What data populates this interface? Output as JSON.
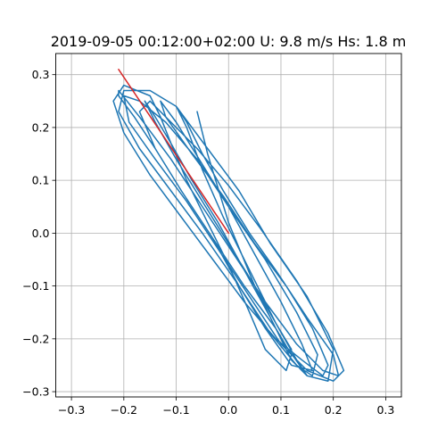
{
  "chart_data": {
    "type": "line",
    "title": "2019-09-05 00:12:00+02:00 U: 9.8 m/s Hs: 1.8 m",
    "xlabel": "",
    "ylabel": "",
    "xlim": [
      -0.33,
      0.33
    ],
    "ylim": [
      -0.31,
      0.34
    ],
    "grid": true,
    "x_ticks": [
      -0.3,
      -0.2,
      -0.1,
      0.0,
      0.1,
      0.2,
      0.3
    ],
    "x_tick_labels": [
      "−0.3",
      "−0.2",
      "−0.1",
      "0.0",
      "0.1",
      "0.2",
      "0.3"
    ],
    "y_ticks": [
      -0.3,
      -0.2,
      -0.1,
      0.0,
      0.1,
      0.2,
      0.3
    ],
    "y_tick_labels": [
      "−0.3",
      "−0.2",
      "−0.1",
      "0.0",
      "0.1",
      "0.2",
      "0.3"
    ],
    "series": [
      {
        "color": "#1f77b4",
        "points": [
          [
            -0.06,
            0.23
          ],
          [
            -0.04,
            0.15
          ],
          [
            0.0,
            0.02
          ],
          [
            0.05,
            -0.1
          ],
          [
            0.1,
            -0.2
          ],
          [
            0.15,
            -0.27
          ],
          [
            0.19,
            -0.28
          ],
          [
            0.2,
            -0.22
          ],
          [
            0.15,
            -0.12
          ],
          [
            0.08,
            -0.02
          ],
          [
            0.02,
            0.08
          ],
          [
            -0.04,
            0.16
          ],
          [
            -0.1,
            0.24
          ],
          [
            -0.15,
            0.27
          ],
          [
            -0.2,
            0.27
          ],
          [
            -0.21,
            0.23
          ],
          [
            -0.17,
            0.16
          ],
          [
            -0.11,
            0.08
          ],
          [
            -0.05,
            0.0
          ],
          [
            0.02,
            -0.1
          ],
          [
            0.08,
            -0.19
          ],
          [
            0.13,
            -0.25
          ],
          [
            0.16,
            -0.27
          ],
          [
            0.17,
            -0.23
          ],
          [
            0.13,
            -0.15
          ],
          [
            0.07,
            -0.05
          ],
          [
            0.0,
            0.05
          ],
          [
            -0.06,
            0.14
          ],
          [
            -0.12,
            0.21
          ],
          [
            -0.17,
            0.25
          ],
          [
            -0.2,
            0.26
          ],
          [
            -0.19,
            0.21
          ],
          [
            -0.14,
            0.14
          ],
          [
            -0.08,
            0.06
          ],
          [
            -0.02,
            -0.03
          ],
          [
            0.04,
            -0.12
          ],
          [
            0.1,
            -0.21
          ],
          [
            0.15,
            -0.26
          ],
          [
            0.2,
            -0.28
          ],
          [
            0.22,
            -0.26
          ],
          [
            0.19,
            -0.19
          ],
          [
            0.13,
            -0.09
          ],
          [
            0.06,
            0.01
          ],
          [
            0.0,
            0.09
          ],
          [
            -0.06,
            0.16
          ],
          [
            -0.11,
            0.21
          ],
          [
            -0.15,
            0.25
          ],
          [
            -0.17,
            0.23
          ],
          [
            -0.14,
            0.16
          ],
          [
            -0.09,
            0.08
          ],
          [
            -0.03,
            -0.01
          ],
          [
            0.03,
            -0.1
          ],
          [
            0.09,
            -0.18
          ],
          [
            0.12,
            -0.23
          ],
          [
            0.11,
            -0.26
          ],
          [
            0.07,
            -0.22
          ],
          [
            0.04,
            -0.15
          ],
          [
            0.0,
            -0.06
          ],
          [
            -0.04,
            0.02
          ],
          [
            -0.08,
            0.1
          ],
          [
            -0.11,
            0.17
          ],
          [
            -0.13,
            0.22
          ],
          [
            -0.15,
            0.26
          ],
          [
            -0.2,
            0.28
          ],
          [
            -0.22,
            0.25
          ],
          [
            -0.2,
            0.19
          ],
          [
            -0.15,
            0.11
          ],
          [
            -0.09,
            0.03
          ],
          [
            -0.03,
            -0.05
          ],
          [
            0.03,
            -0.13
          ],
          [
            0.09,
            -0.2
          ],
          [
            0.14,
            -0.24
          ],
          [
            0.18,
            -0.27
          ],
          [
            0.19,
            -0.25
          ],
          [
            0.16,
            -0.18
          ],
          [
            0.11,
            -0.1
          ],
          [
            0.05,
            -0.02
          ],
          [
            -0.01,
            0.07
          ],
          [
            -0.07,
            0.15
          ],
          [
            -0.12,
            0.22
          ],
          [
            -0.13,
            0.25
          ],
          [
            -0.1,
            0.21
          ],
          [
            -0.05,
            0.13
          ],
          [
            0.0,
            0.05
          ],
          [
            0.05,
            -0.04
          ],
          [
            0.1,
            -0.13
          ],
          [
            0.14,
            -0.21
          ],
          [
            0.16,
            -0.26
          ],
          [
            0.12,
            -0.25
          ],
          [
            0.07,
            -0.18
          ],
          [
            0.02,
            -0.1
          ],
          [
            -0.03,
            -0.01
          ],
          [
            -0.09,
            0.08
          ],
          [
            -0.14,
            0.16
          ],
          [
            -0.18,
            0.22
          ],
          [
            -0.21,
            0.26
          ],
          [
            -0.21,
            0.27
          ],
          [
            -0.17,
            0.22
          ],
          [
            -0.11,
            0.14
          ],
          [
            -0.05,
            0.05
          ],
          [
            0.01,
            -0.04
          ],
          [
            0.07,
            -0.13
          ],
          [
            0.13,
            -0.21
          ],
          [
            0.18,
            -0.26
          ],
          [
            0.21,
            -0.27
          ],
          [
            0.2,
            -0.23
          ],
          [
            0.15,
            -0.16
          ],
          [
            0.09,
            -0.07
          ],
          [
            0.04,
            0.0
          ],
          [
            -0.01,
            0.08
          ],
          [
            -0.05,
            0.15
          ],
          [
            -0.08,
            0.21
          ],
          [
            -0.1,
            0.24
          ],
          [
            -0.08,
            0.2
          ],
          [
            -0.05,
            0.12
          ],
          [
            -0.01,
            0.03
          ],
          [
            0.04,
            -0.07
          ],
          [
            0.09,
            -0.17
          ],
          [
            0.13,
            -0.24
          ],
          [
            0.15,
            -0.27
          ],
          [
            0.12,
            -0.24
          ],
          [
            0.08,
            -0.16
          ],
          [
            0.03,
            -0.07
          ],
          [
            -0.02,
            0.02
          ],
          [
            -0.07,
            0.1
          ],
          [
            -0.11,
            0.17
          ],
          [
            -0.14,
            0.22
          ],
          [
            -0.16,
            0.25
          ],
          [
            -0.14,
            0.21
          ],
          [
            -0.1,
            0.14
          ],
          [
            -0.05,
            0.06
          ],
          [
            0.0,
            -0.02
          ],
          [
            0.05,
            -0.1
          ],
          [
            0.09,
            -0.17
          ],
          [
            0.12,
            -0.22
          ]
        ]
      },
      {
        "color": "#d62728",
        "points": [
          [
            -0.21,
            0.31
          ],
          [
            -0.105,
            0.155
          ],
          [
            0.0,
            0.0
          ]
        ]
      }
    ]
  }
}
